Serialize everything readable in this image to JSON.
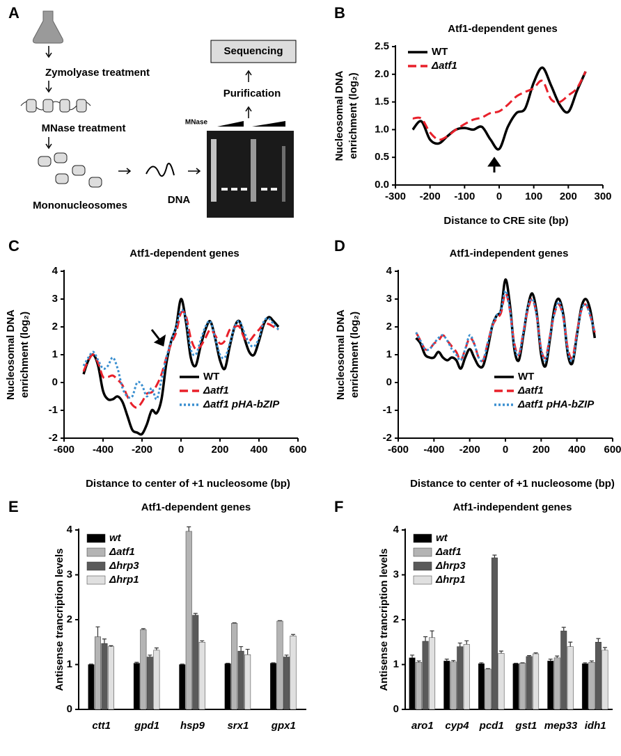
{
  "diagram": {
    "panel": "A",
    "steps": [
      "Zymolyase treatment",
      "MNase treatment",
      "Mononucleosomes",
      "DNA",
      "Purification",
      "Sequencing"
    ],
    "gel_label": "MNase"
  },
  "chart_data": [
    {
      "type": "line",
      "panel": "B",
      "title": "Atf1-dependent genes",
      "xlabel": "Distance to CRE site (bp)",
      "ylabel": [
        "Nucleosomal DNA",
        "enrichment (log₂)"
      ],
      "x": [
        -250,
        -225,
        -200,
        -175,
        -150,
        -125,
        -100,
        -75,
        -50,
        -25,
        0,
        25,
        50,
        75,
        100,
        125,
        150,
        175,
        200,
        225,
        250
      ],
      "series": [
        {
          "name": "WT",
          "color": "#000000",
          "dash": "solid",
          "values": [
            1.0,
            1.15,
            0.82,
            0.75,
            0.88,
            1.0,
            1.03,
            1.0,
            1.05,
            0.82,
            0.65,
            1.05,
            1.3,
            1.38,
            1.85,
            2.12,
            1.8,
            1.45,
            1.32,
            1.7,
            2.05
          ]
        },
        {
          "name": "Δatf1",
          "color": "#e8202a",
          "dash": "dashed",
          "values": [
            1.2,
            1.2,
            0.95,
            0.82,
            0.88,
            1.0,
            1.1,
            1.18,
            1.22,
            1.3,
            1.33,
            1.45,
            1.6,
            1.68,
            1.75,
            1.88,
            1.55,
            1.5,
            1.62,
            1.75,
            2.05
          ]
        }
      ],
      "xlim": [
        -300,
        300
      ],
      "xticks": [
        -300,
        -200,
        -100,
        0,
        100,
        200,
        300
      ],
      "ylim": [
        0,
        2.5
      ],
      "yticks": [
        {
          "value": 0,
          "label": "0.0"
        },
        {
          "value": 0.5,
          "label": "0.5"
        },
        {
          "value": 1,
          "label": "1.0"
        },
        {
          "value": 1.5,
          "label": "1.5"
        },
        {
          "value": 2,
          "label": "2.0"
        },
        {
          "value": 2.5,
          "label": "2.5"
        }
      ],
      "legend": "upper left"
    },
    {
      "type": "line",
      "panel": "C",
      "title": "Atf1-dependent genes",
      "xlabel": "Distance to center of +1 nucleosome (bp)",
      "ylabel": [
        "Nucleosomal DNA",
        "enrichment (log₂)"
      ],
      "x": [
        -500,
        -475,
        -450,
        -425,
        -400,
        -375,
        -350,
        -325,
        -300,
        -275,
        -250,
        -225,
        -200,
        -175,
        -150,
        -125,
        -100,
        -75,
        -50,
        -25,
        0,
        25,
        50,
        75,
        100,
        125,
        150,
        175,
        200,
        225,
        250,
        275,
        300,
        325,
        350,
        375,
        400,
        425,
        450,
        475,
        500
      ],
      "series": [
        {
          "name": "WT",
          "color": "#000000",
          "dash": "solid",
          "values": [
            0.3,
            0.8,
            1.0,
            0.6,
            -0.3,
            -0.6,
            -0.6,
            -0.5,
            -0.7,
            -1.2,
            -1.7,
            -1.8,
            -1.85,
            -1.5,
            -1.0,
            -1.1,
            -0.6,
            0.7,
            1.5,
            2.0,
            3.0,
            2.2,
            0.9,
            0.6,
            1.3,
            1.9,
            2.2,
            1.6,
            0.8,
            0.5,
            1.3,
            2.0,
            2.2,
            1.6,
            1.1,
            1.0,
            1.5,
            2.1,
            2.35,
            2.2,
            2.0
          ]
        },
        {
          "name": "Δatf1",
          "color": "#e8202a",
          "dash": "dashed",
          "values": [
            0.4,
            0.8,
            1.0,
            0.7,
            0.2,
            0.2,
            0.25,
            0.1,
            -0.1,
            -0.5,
            -0.8,
            -0.9,
            -0.7,
            -0.4,
            -0.35,
            -0.1,
            0.3,
            0.9,
            1.4,
            1.8,
            2.5,
            2.4,
            1.6,
            1.2,
            1.3,
            1.6,
            1.9,
            1.7,
            1.4,
            1.5,
            1.9,
            2.0,
            2.0,
            1.6,
            1.5,
            1.7,
            1.9,
            2.1,
            2.1,
            2.0,
            1.9
          ]
        },
        {
          "name": "Δatf1 pHA-bZIP",
          "color": "#3a8fd0",
          "dash": "dotted",
          "values": [
            0.6,
            0.9,
            1.1,
            0.8,
            0.5,
            0.6,
            0.9,
            0.5,
            -0.2,
            -0.5,
            -0.5,
            0.0,
            -0.1,
            -0.5,
            -0.2,
            -0.6,
            0.1,
            0.9,
            1.5,
            2.0,
            2.6,
            2.3,
            1.2,
            1.0,
            1.5,
            2.0,
            2.2,
            1.6,
            1.0,
            0.9,
            1.4,
            2.0,
            2.2,
            1.8,
            1.4,
            1.3,
            1.6,
            2.2,
            2.3,
            2.1,
            1.9
          ]
        }
      ],
      "xlim": [
        -600,
        600
      ],
      "xticks": [
        -600,
        -400,
        -200,
        0,
        200,
        400,
        600
      ],
      "ylim": [
        -2,
        4
      ],
      "yticks": [
        -2,
        -1,
        0,
        1,
        2,
        3,
        4
      ],
      "legend": "lower right"
    },
    {
      "type": "line",
      "panel": "D",
      "title": "Atf1-independent genes",
      "xlabel": "Distance to center of +1 nucleosome (bp)",
      "ylabel": [
        "Nucleosomal DNA",
        "enrichment (log₂)"
      ],
      "x": [
        -500,
        -475,
        -450,
        -425,
        -400,
        -375,
        -350,
        -325,
        -300,
        -275,
        -250,
        -225,
        -200,
        -175,
        -150,
        -125,
        -100,
        -75,
        -50,
        -25,
        0,
        25,
        50,
        75,
        100,
        125,
        150,
        175,
        200,
        225,
        250,
        275,
        300,
        325,
        350,
        375,
        400,
        425,
        450,
        475,
        500
      ],
      "series": [
        {
          "name": "WT",
          "color": "#000000",
          "dash": "solid",
          "values": [
            1.6,
            1.4,
            1.0,
            0.9,
            0.9,
            1.1,
            0.9,
            0.8,
            0.9,
            0.8,
            0.5,
            0.9,
            1.2,
            0.9,
            0.6,
            0.6,
            1.2,
            2.0,
            2.4,
            2.6,
            3.7,
            2.8,
            1.2,
            0.8,
            1.7,
            2.7,
            3.2,
            2.5,
            1.0,
            0.6,
            1.6,
            2.7,
            3.0,
            2.4,
            1.0,
            0.7,
            1.7,
            2.7,
            3.0,
            2.6,
            1.6
          ]
        },
        {
          "name": "Δatf1",
          "color": "#e8202a",
          "dash": "dashed",
          "values": [
            1.8,
            1.5,
            1.2,
            1.2,
            1.4,
            1.5,
            1.7,
            1.5,
            1.3,
            1.1,
            0.8,
            1.2,
            1.6,
            1.4,
            0.9,
            0.8,
            1.4,
            2.0,
            2.3,
            2.5,
            3.2,
            2.6,
            1.4,
            1.0,
            1.8,
            2.6,
            3.0,
            2.4,
            1.2,
            0.9,
            1.7,
            2.5,
            2.8,
            2.3,
            1.2,
            0.9,
            1.8,
            2.6,
            2.8,
            2.4,
            1.8
          ]
        },
        {
          "name": "Δatf1 pHA-bZIP",
          "color": "#3a8fd0",
          "dash": "dotted",
          "values": [
            1.8,
            1.5,
            1.2,
            1.2,
            1.4,
            1.6,
            1.7,
            1.5,
            1.2,
            1.0,
            0.8,
            1.2,
            1.7,
            1.4,
            0.9,
            0.8,
            1.4,
            2.0,
            2.4,
            2.6,
            3.3,
            2.6,
            1.3,
            1.0,
            1.8,
            2.7,
            3.0,
            2.4,
            1.2,
            0.8,
            1.7,
            2.5,
            2.9,
            2.3,
            1.1,
            0.8,
            1.7,
            2.6,
            2.8,
            2.4,
            1.8
          ]
        }
      ],
      "xlim": [
        -600,
        600
      ],
      "xticks": [
        -600,
        -400,
        -200,
        0,
        200,
        400,
        600
      ],
      "ylim": [
        -2,
        4
      ],
      "yticks": [
        -2,
        -1,
        0,
        1,
        2,
        3,
        4
      ],
      "legend": "lower right"
    },
    {
      "type": "bar",
      "panel": "E",
      "title": "Atf1-dependent genes",
      "ylabel": [
        "Antisense trancription levels"
      ],
      "categories": [
        "ctt1",
        "gpd1",
        "hsp9",
        "srx1",
        "gpx1"
      ],
      "series": [
        {
          "name": "wt",
          "color": "#000000",
          "values": [
            1.0,
            1.03,
            1.0,
            1.02,
            1.03
          ],
          "errors": [
            0.01,
            0.02,
            0.01,
            0.01,
            0.01
          ]
        },
        {
          "name": "Δatf1",
          "color": "#b4b4b4",
          "values": [
            1.62,
            1.78,
            3.97,
            1.92,
            1.97
          ],
          "errors": [
            0.22,
            0.02,
            0.1,
            0.01,
            0.01
          ]
        },
        {
          "name": "Δhrp3",
          "color": "#5a5a5a",
          "values": [
            1.47,
            1.17,
            2.1,
            1.3,
            1.17
          ],
          "errors": [
            0.1,
            0.04,
            0.04,
            0.1,
            0.04
          ]
        },
        {
          "name": "Δhrp1",
          "color": "#e0e0e0",
          "values": [
            1.4,
            1.32,
            1.5,
            1.22,
            1.64
          ],
          "errors": [
            0.02,
            0.05,
            0.03,
            0.12,
            0.03
          ]
        }
      ],
      "ylim": [
        0,
        4
      ],
      "yticks": [
        0,
        1,
        2,
        3,
        4
      ],
      "legend": "upper left"
    },
    {
      "type": "bar",
      "panel": "F",
      "title": "Atf1-independent genes",
      "ylabel": [
        "Antisense trancription levels"
      ],
      "categories": [
        "aro1",
        "cyp4",
        "pcd1",
        "gst1",
        "mep33",
        "idh1"
      ],
      "series": [
        {
          "name": "wt",
          "color": "#000000",
          "values": [
            1.15,
            1.08,
            1.02,
            1.02,
            1.08,
            1.02
          ],
          "errors": [
            0.06,
            0.04,
            0.02,
            0.01,
            0.04,
            0.02
          ]
        },
        {
          "name": "Δatf1",
          "color": "#b4b4b4",
          "values": [
            1.05,
            1.06,
            0.9,
            1.03,
            1.15,
            1.05
          ],
          "errors": [
            0.03,
            0.03,
            0.01,
            0.01,
            0.04,
            0.03
          ]
        },
        {
          "name": "Δhrp3",
          "color": "#5a5a5a",
          "values": [
            1.52,
            1.4,
            3.38,
            1.18,
            1.75,
            1.5
          ],
          "errors": [
            0.1,
            0.08,
            0.06,
            0.02,
            0.08,
            0.08
          ]
        },
        {
          "name": "Δhrp1",
          "color": "#e0e0e0",
          "values": [
            1.6,
            1.45,
            1.25,
            1.24,
            1.4,
            1.32
          ],
          "errors": [
            0.15,
            0.08,
            0.05,
            0.02,
            0.1,
            0.06
          ]
        }
      ],
      "ylim": [
        0,
        4
      ],
      "yticks": [
        0,
        1,
        2,
        3,
        4
      ],
      "legend": "upper left"
    }
  ]
}
